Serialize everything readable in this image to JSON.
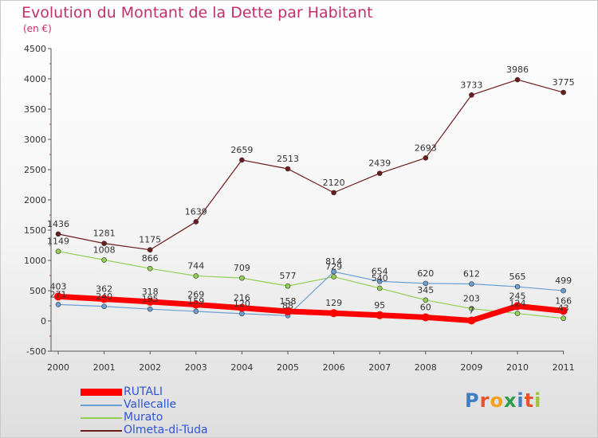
{
  "title": "Evolution du Montant de la Dette par Habitant",
  "subtitle": "(en €)",
  "logo": {
    "text": "Proxiti",
    "letters": [
      {
        "ch": "P",
        "color": "#3d7fc4"
      },
      {
        "ch": "r",
        "color": "#e8532c"
      },
      {
        "ch": "o",
        "color": "#f2a21b"
      },
      {
        "ch": "x",
        "color": "#2f9b48"
      },
      {
        "ch": "i",
        "color": "#3d7fc4"
      },
      {
        "ch": "t",
        "color": "#e8532c"
      },
      {
        "ch": "i",
        "color": "#9fc33a"
      }
    ]
  },
  "chart_data": {
    "type": "line",
    "x": [
      "2000",
      "2001",
      "2002",
      "2003",
      "2004",
      "2005",
      "2006",
      "2007",
      "2008",
      "2009",
      "2010",
      "2011"
    ],
    "ylim": [
      -500,
      4500
    ],
    "yticks": [
      -500,
      0,
      500,
      1000,
      1500,
      2000,
      2500,
      3000,
      3500,
      4000,
      4500
    ],
    "grid": false,
    "legend_position": "bottom-left",
    "series": [
      {
        "name": "Olmeta-di-Tuda",
        "color": "#6d1a1a",
        "values": [
          1436,
          1281,
          1175,
          1639,
          2659,
          2513,
          2120,
          2439,
          2693,
          3733,
          3986,
          3775
        ],
        "labels": [
          "1436",
          "1281",
          "1175",
          "1639",
          "2659",
          "2513",
          "2120",
          "2439",
          "2693",
          "3733",
          "3986",
          "3775"
        ],
        "width": 1.2
      },
      {
        "name": "Murato",
        "color": "#92d050",
        "values": [
          1149,
          1008,
          866,
          744,
          709,
          577,
          729,
          540,
          345,
          203,
          124,
          43
        ],
        "labels": [
          "1149",
          "1008",
          "866",
          "744",
          "709",
          "577",
          "729",
          "540",
          "345",
          "203",
          "124",
          "43"
        ],
        "width": 1.2
      },
      {
        "name": "Vallecalle",
        "color": "#6a9fd4",
        "values": [
          271,
          240,
          195,
          159,
          120,
          88,
          814,
          654,
          620,
          612,
          565,
          499
        ],
        "labels": [
          "271",
          "240",
          "195",
          "159",
          "120",
          "88",
          "814",
          "654",
          "620",
          "612",
          "565",
          "499"
        ],
        "width": 1.2
      },
      {
        "name": "RUTALI",
        "color": "#ff0000",
        "values": [
          403,
          362,
          318,
          269,
          216,
          158,
          129,
          95,
          60,
          7,
          245,
          166
        ],
        "labels": [
          "403",
          "362",
          "318",
          "269",
          "216",
          "158",
          "129",
          "95",
          "60",
          "7",
          "245",
          "166"
        ],
        "width": 7
      }
    ],
    "legend_order": [
      "RUTALI",
      "Vallecalle",
      "Murato",
      "Olmeta-di-Tuda"
    ]
  }
}
